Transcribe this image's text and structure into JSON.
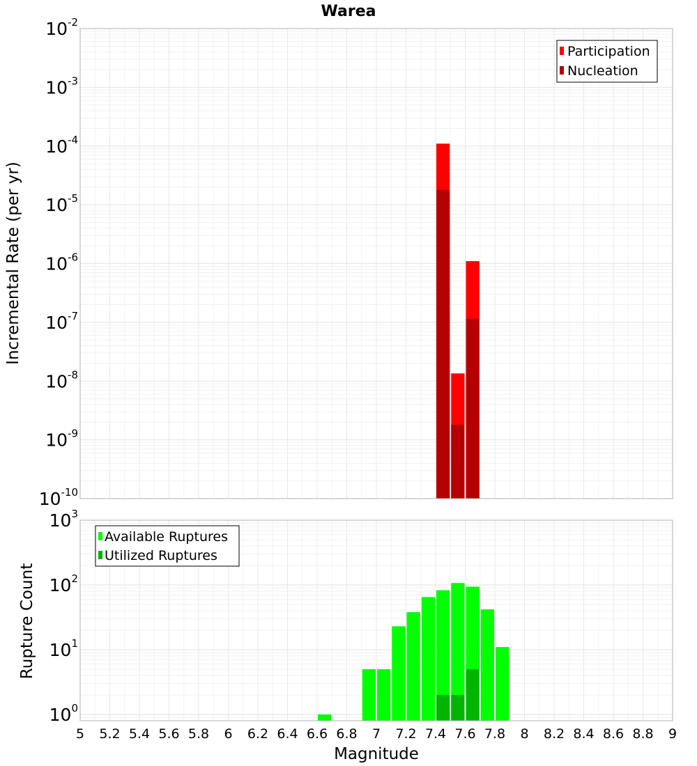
{
  "chart_data": [
    {
      "type": "bar",
      "title": "Warea",
      "ylabel": "Incremental Rate (per yr)",
      "xlabel": "",
      "yscale": "log",
      "xlim": [
        5,
        9
      ],
      "ylim": [
        1e-10,
        0.01
      ],
      "grid": true,
      "legend_position": "top-right",
      "series": [
        {
          "name": "Participation",
          "color": "#ff0000",
          "x": [
            7.45,
            7.55,
            7.65
          ],
          "values": [
            0.00011,
            1.35e-08,
            1.1e-06
          ]
        },
        {
          "name": "Nucleation",
          "color": "#b40000",
          "x": [
            7.45,
            7.55,
            7.65
          ],
          "values": [
            1.8e-05,
            1.8e-09,
            1.15e-07
          ]
        }
      ]
    },
    {
      "type": "bar",
      "title": "",
      "ylabel": "Rupture Count",
      "xlabel": "Magnitude",
      "yscale": "log",
      "xlim": [
        5,
        9
      ],
      "ylim": [
        0.8,
        1000
      ],
      "grid": true,
      "legend_position": "top-left",
      "series": [
        {
          "name": "Available Ruptures",
          "color": "#00ff00",
          "x": [
            6.65,
            6.95,
            7.05,
            7.15,
            7.25,
            7.35,
            7.45,
            7.55,
            7.65,
            7.75,
            7.85
          ],
          "values": [
            1,
            5,
            5,
            23,
            38,
            65,
            83,
            107,
            94,
            42,
            11
          ]
        },
        {
          "name": "Utilized Ruptures",
          "color": "#00b400",
          "x": [
            7.45,
            7.55,
            7.65
          ],
          "values": [
            2,
            2,
            5
          ]
        }
      ]
    }
  ],
  "x_ticks": [
    "5",
    "5.2",
    "5.4",
    "5.6",
    "5.8",
    "6",
    "6.2",
    "6.4",
    "6.6",
    "6.8",
    "7",
    "7.2",
    "7.4",
    "7.6",
    "7.8",
    "8",
    "8.2",
    "8.4",
    "8.6",
    "8.8",
    "9"
  ],
  "top_y_ticks": [
    {
      "base": "10",
      "exp": "-2"
    },
    {
      "base": "10",
      "exp": "-3"
    },
    {
      "base": "10",
      "exp": "-4"
    },
    {
      "base": "10",
      "exp": "-5"
    },
    {
      "base": "10",
      "exp": "-6"
    },
    {
      "base": "10",
      "exp": "-7"
    },
    {
      "base": "10",
      "exp": "-8"
    },
    {
      "base": "10",
      "exp": "-9"
    },
    {
      "base": "10",
      "exp": "-10"
    }
  ],
  "bottom_y_ticks": [
    {
      "base": "10",
      "exp": "3"
    },
    {
      "base": "10",
      "exp": "2"
    },
    {
      "base": "10",
      "exp": "1"
    },
    {
      "base": "10",
      "exp": "0"
    }
  ]
}
